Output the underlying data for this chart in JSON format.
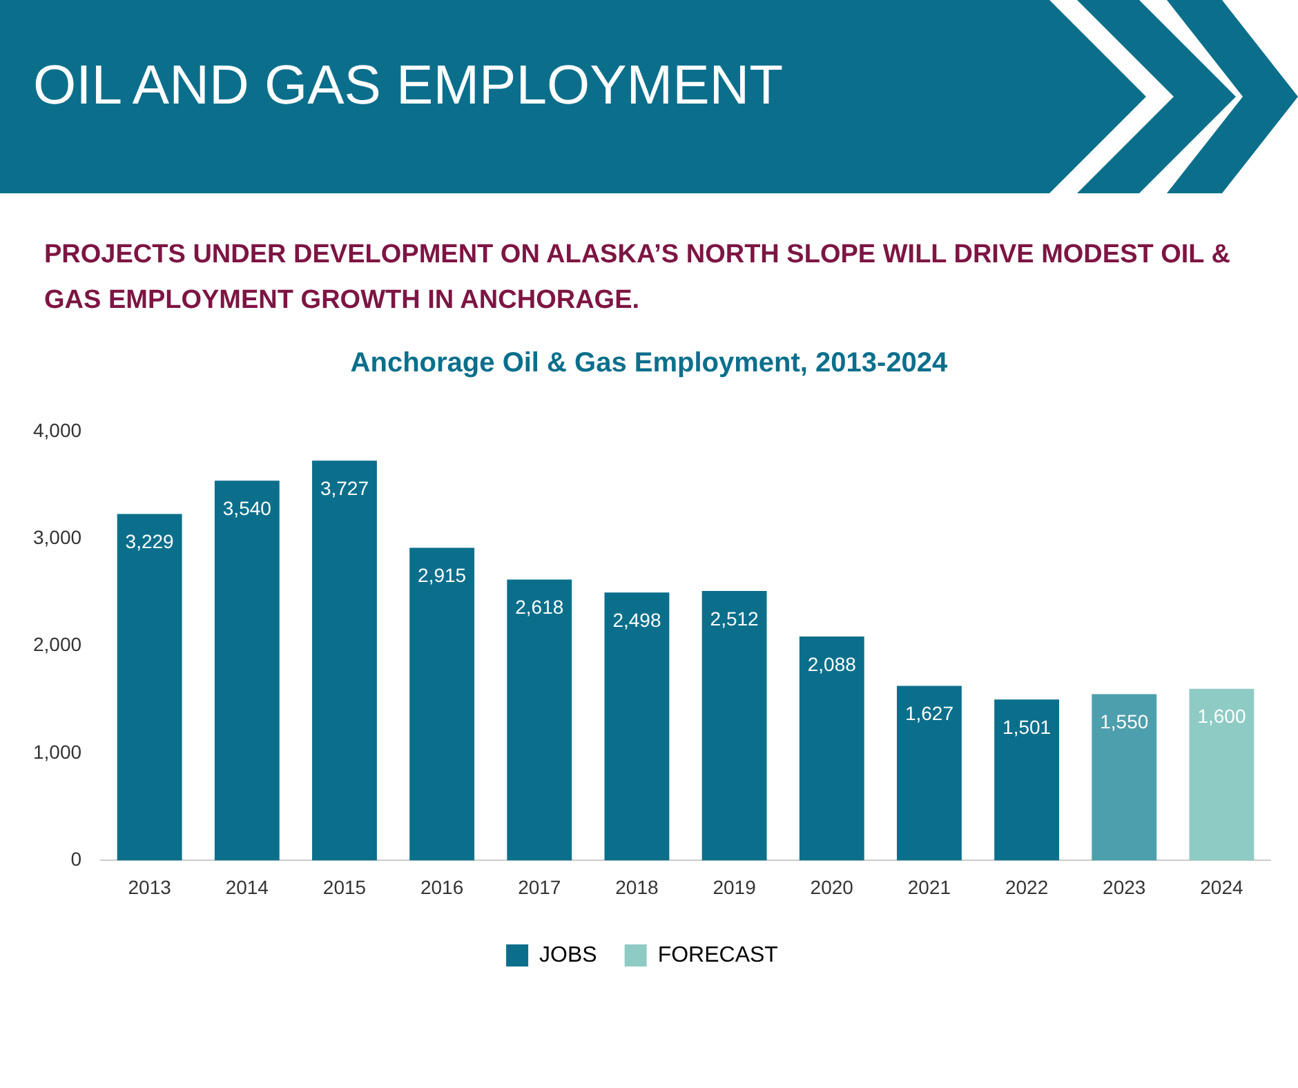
{
  "chart_data": {
    "type": "bar",
    "title": "OIL AND GAS EMPLOYMENT",
    "subtitle": "PROJECTS UNDER DEVELOPMENT ON ALASKA’S NORTH SLOPE WILL DRIVE MODEST OIL & GAS EMPLOYMENT GROWTH IN ANCHORAGE.",
    "annotations": [
      "Anchorage Oil & Gas Employment, 2013-2024"
    ],
    "categories": [
      "2013",
      "2014",
      "2015",
      "2016",
      "2017",
      "2018",
      "2019",
      "2020",
      "2021",
      "2022",
      "2023",
      "2024"
    ],
    "series": [
      {
        "name": "JOBS",
        "color": "#0b6f8c",
        "values": [
          3229,
          3540,
          3727,
          2915,
          2618,
          2498,
          2512,
          2088,
          1627,
          1501,
          null,
          null
        ],
        "value_labels": [
          "3,229",
          "3,540",
          "3,727",
          "2,915",
          "2,618",
          "2,498",
          "2,512",
          "2,088",
          "1,627",
          "1,501",
          null,
          null
        ]
      },
      {
        "name": "FORECAST",
        "color": "#8ecbc4",
        "colors": [
          null,
          null,
          null,
          null,
          null,
          null,
          null,
          null,
          null,
          null,
          "#4e9fad",
          "#8ecbc4"
        ],
        "values": [
          null,
          null,
          null,
          null,
          null,
          null,
          null,
          null,
          null,
          null,
          1550,
          1600
        ],
        "value_labels": [
          null,
          null,
          null,
          null,
          null,
          null,
          null,
          null,
          null,
          null,
          "1,550",
          "1,600"
        ]
      }
    ],
    "ylim": [
      0,
      4000
    ],
    "yticks": [
      {
        "value": 0,
        "label": "0"
      },
      {
        "value": 1000,
        "label": "1,000"
      },
      {
        "value": 2000,
        "label": "2,000"
      },
      {
        "value": 3000,
        "label": "3,000"
      },
      {
        "value": 4000,
        "label": "4,000"
      }
    ],
    "legend": "bottom",
    "grid": false
  }
}
